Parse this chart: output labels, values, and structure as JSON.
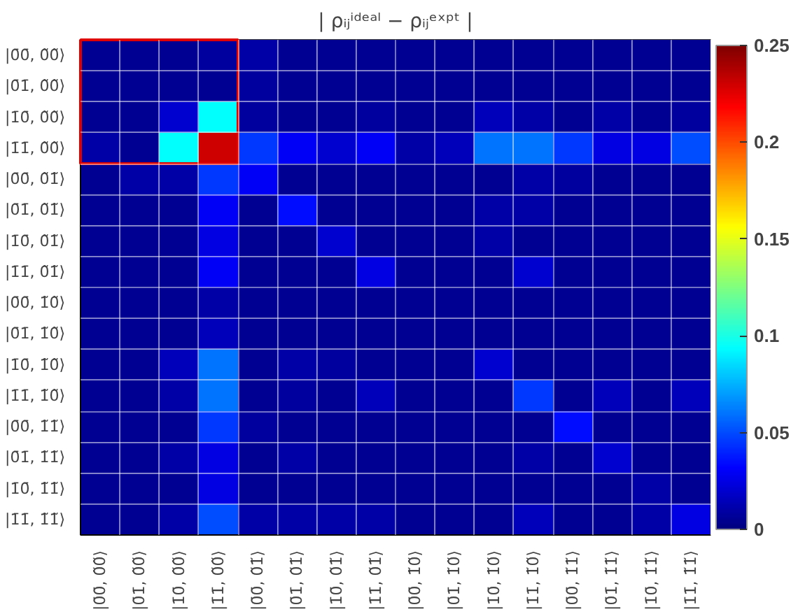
{
  "chart_data": {
    "type": "heatmap",
    "title": "| ρᵢⱼⁱᵈᵉᵃˡ − ρᵢⱼᵉˣᵖᵗ |",
    "categories": [
      "|0̄0̄, 0̃0̃⟩",
      "|0̄1̄, 0̃0̃⟩",
      "|1̄0̄, 0̃0̃⟩",
      "|1̄1̄, 0̃0̃⟩",
      "|0̄0̄, 0̃1̃⟩",
      "|0̄1̄, 0̃1̃⟩",
      "|1̄0̄, 0̃1̃⟩",
      "|1̄1̄, 0̃1̃⟩",
      "|0̄0̄, 1̃0̃⟩",
      "|0̄1̄, 1̃0̃⟩",
      "|1̄0̄, 1̃0̃⟩",
      "|1̄1̄, 1̃0̃⟩",
      "|0̄0̄, 1̃1̃⟩",
      "|0̄1̄, 1̃1̃⟩",
      "|1̄0̄, 1̃1̃⟩",
      "|1̄1̄, 1̃1̃⟩"
    ],
    "y_categories": [
      "|0̄0̄, 0̃0̃⟩",
      "|0̄1̄, 0̃0̃⟩",
      "|1̄0̄, 0̃0̃⟩",
      "|1̄1̄, 0̃0̃⟩",
      "|0̄0̄, 0̃1̃⟩",
      "|0̄1̄, 0̃1̃⟩",
      "|1̄0̄, 0̃1̃⟩",
      "|1̄1̄, 0̃1̃⟩",
      "|0̄0̄, 1̃0̃⟩",
      "|0̄1̄, 1̃0̃⟩",
      "|1̄0̄, 1̃0̃⟩",
      "|1̄1̄, 1̃0̃⟩",
      "|0̄0̄, 1̃1̃⟩",
      "|0̄1̄, 1̃1̃⟩",
      "|1̄0̄, 1̃1̃⟩",
      "|1̄1̄, 1̃1̃⟩"
    ],
    "cells": [
      [
        0.005,
        0.005,
        0.005,
        0.008,
        0.01,
        0.005,
        0.005,
        0.005,
        0.005,
        0.005,
        0.005,
        0.005,
        0.005,
        0.005,
        0.005,
        0.005
      ],
      [
        0.005,
        0.005,
        0.005,
        0.005,
        0.008,
        0.005,
        0.005,
        0.005,
        0.005,
        0.005,
        0.005,
        0.005,
        0.005,
        0.005,
        0.005,
        0.005
      ],
      [
        0.005,
        0.005,
        0.02,
        0.094,
        0.008,
        0.005,
        0.005,
        0.008,
        0.005,
        0.005,
        0.015,
        0.01,
        0.005,
        0.01,
        0.005,
        0.008
      ],
      [
        0.01,
        0.005,
        0.094,
        0.23,
        0.045,
        0.03,
        0.02,
        0.03,
        0.01,
        0.015,
        0.06,
        0.06,
        0.045,
        0.025,
        0.025,
        0.05
      ],
      [
        0.005,
        0.01,
        0.01,
        0.045,
        0.03,
        0.005,
        0.005,
        0.005,
        0.005,
        0.005,
        0.005,
        0.01,
        0.008,
        0.005,
        0.005,
        0.005
      ],
      [
        0.005,
        0.005,
        0.005,
        0.03,
        0.005,
        0.035,
        0.005,
        0.005,
        0.005,
        0.005,
        0.01,
        0.01,
        0.005,
        0.005,
        0.005,
        0.005
      ],
      [
        0.005,
        0.005,
        0.005,
        0.025,
        0.005,
        0.005,
        0.02,
        0.005,
        0.005,
        0.005,
        0.01,
        0.005,
        0.005,
        0.005,
        0.005,
        0.005
      ],
      [
        0.005,
        0.005,
        0.005,
        0.03,
        0.005,
        0.005,
        0.005,
        0.025,
        0.005,
        0.005,
        0.005,
        0.02,
        0.005,
        0.005,
        0.005,
        0.005
      ],
      [
        0.005,
        0.005,
        0.005,
        0.01,
        0.005,
        0.005,
        0.005,
        0.005,
        0.005,
        0.005,
        0.005,
        0.005,
        0.005,
        0.005,
        0.005,
        0.005
      ],
      [
        0.005,
        0.005,
        0.005,
        0.015,
        0.005,
        0.005,
        0.005,
        0.005,
        0.005,
        0.005,
        0.005,
        0.005,
        0.005,
        0.005,
        0.005,
        0.005
      ],
      [
        0.005,
        0.005,
        0.015,
        0.06,
        0.005,
        0.01,
        0.008,
        0.005,
        0.005,
        0.005,
        0.02,
        0.005,
        0.005,
        0.005,
        0.005,
        0.005
      ],
      [
        0.005,
        0.005,
        0.01,
        0.06,
        0.005,
        0.008,
        0.005,
        0.015,
        0.005,
        0.005,
        0.005,
        0.045,
        0.005,
        0.015,
        0.005,
        0.015
      ],
      [
        0.005,
        0.005,
        0.005,
        0.045,
        0.008,
        0.005,
        0.005,
        0.005,
        0.005,
        0.005,
        0.005,
        0.005,
        0.035,
        0.005,
        0.005,
        0.005
      ],
      [
        0.005,
        0.005,
        0.01,
        0.025,
        0.005,
        0.01,
        0.005,
        0.005,
        0.005,
        0.005,
        0.005,
        0.01,
        0.005,
        0.02,
        0.005,
        0.005
      ],
      [
        0.005,
        0.005,
        0.005,
        0.025,
        0.005,
        0.005,
        0.005,
        0.005,
        0.005,
        0.005,
        0.005,
        0.005,
        0.005,
        0.005,
        0.01,
        0.005
      ],
      [
        0.005,
        0.005,
        0.01,
        0.05,
        0.01,
        0.01,
        0.01,
        0.01,
        0.005,
        0.005,
        0.005,
        0.015,
        0.005,
        0.005,
        0.01,
        0.025
      ]
    ],
    "clim": [
      0,
      0.25
    ],
    "cticks": [
      0,
      0.05,
      0.1,
      0.15,
      0.2,
      0.25
    ]
  }
}
